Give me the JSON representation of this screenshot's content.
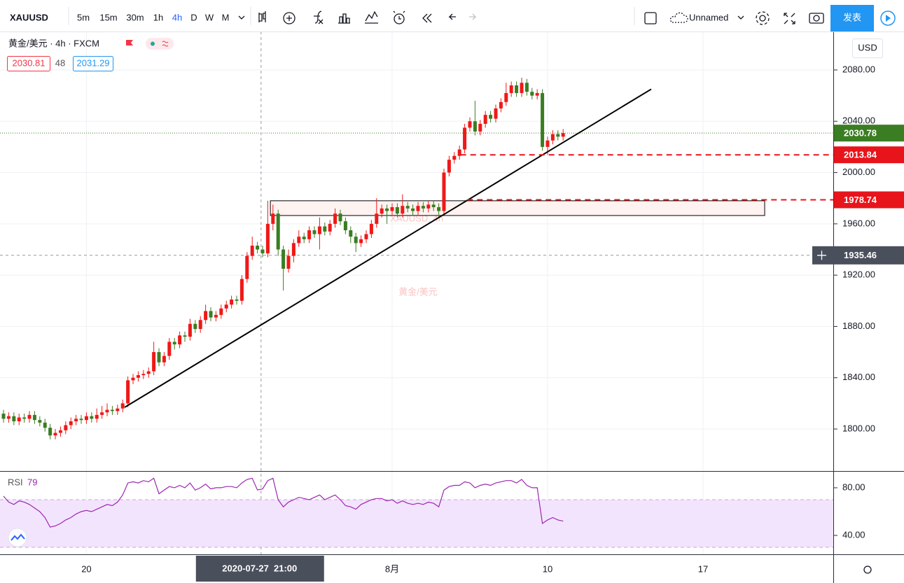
{
  "toolbar": {
    "symbol": "XAUUSD",
    "intervals": [
      "5m",
      "15m",
      "30m",
      "1h",
      "4h",
      "D",
      "W",
      "M"
    ],
    "active_interval": 4,
    "layout_name": "Unnamed",
    "publish": "发表"
  },
  "legend": {
    "title": "黄金/美元 · 4h · FXCM",
    "bid": 2030.81,
    "spread": 48,
    "ask": 2031.29,
    "currency": "USD"
  },
  "chart_data": {
    "type": "candlestick",
    "watermark": "XAUUSD, 4h",
    "watermark_sub": "黄金/美元",
    "up_color": "#f01818",
    "down_color": "#3b7d23",
    "xlim": [
      -0.68,
      160.14
    ],
    "ylim": [
      1767.8,
      2110.0
    ],
    "xticks": [
      {
        "value": 16,
        "label": "20"
      },
      {
        "value": 75,
        "label": "8月"
      },
      {
        "value": 105,
        "label": "10"
      },
      {
        "value": 135,
        "label": "17"
      }
    ],
    "yticks": [
      {
        "value": 1800,
        "label": "1800.00"
      },
      {
        "value": 1840,
        "label": "1840.00"
      },
      {
        "value": 1880,
        "label": "1880.00"
      },
      {
        "value": 1920,
        "label": "1920.00"
      },
      {
        "value": 1960,
        "label": "1960.00"
      },
      {
        "value": 2000,
        "label": "2000.00"
      },
      {
        "value": 2040,
        "label": "2040.00"
      },
      {
        "value": 2080,
        "label": "2080.00"
      }
    ],
    "grid": true,
    "open": [
      1812,
      1808,
      1810,
      1806,
      1809,
      1808,
      1811,
      1807,
      1805,
      1801,
      1795,
      1797,
      1799,
      1803,
      1806,
      1808,
      1807,
      1810,
      1808,
      1811,
      1813,
      1815,
      1814,
      1816,
      1820,
      1838,
      1840,
      1842,
      1843,
      1845,
      1860,
      1852,
      1857,
      1868,
      1866,
      1873,
      1872,
      1882,
      1878,
      1885,
      1892,
      1887,
      1889,
      1894,
      1897,
      1901,
      1900,
      1917,
      1935,
      1943,
      1940,
      1937,
      1960,
      1968,
      1940,
      1925,
      1935,
      1945,
      1950,
      1948,
      1955,
      1952,
      1958,
      1954,
      1960,
      1968,
      1962,
      1955,
      1950,
      1945,
      1948,
      1952,
      1960,
      1968,
      1972,
      1970,
      1973,
      1968,
      1974,
      1972,
      1970,
      1974,
      1972,
      1975,
      1973,
      1970,
      2000,
      2010,
      2013,
      2018,
      2035,
      2040,
      2032,
      2038,
      2045,
      2042,
      2050,
      2055,
      2062,
      2068,
      2062,
      2070,
      2063,
      2060,
      2062,
      2020,
      2025,
      2030,
      2028
    ],
    "high": [
      1815,
      1813,
      1813,
      1812,
      1812,
      1814,
      1814,
      1810,
      1808,
      1804,
      1800,
      1802,
      1806,
      1809,
      1811,
      1811,
      1813,
      1813,
      1816,
      1818,
      1820,
      1818,
      1819,
      1823,
      1841,
      1843,
      1845,
      1846,
      1848,
      1868,
      1863,
      1860,
      1871,
      1871,
      1876,
      1876,
      1886,
      1885,
      1888,
      1897,
      1895,
      1892,
      1897,
      1900,
      1904,
      1904,
      1920,
      1938,
      1950,
      1946,
      1943,
      1978,
      1975,
      1971,
      1943,
      1940,
      1948,
      1955,
      1953,
      1958,
      1958,
      1965,
      1961,
      1963,
      1972,
      1971,
      1965,
      1958,
      1953,
      1951,
      1955,
      1963,
      1980,
      1975,
      1975,
      1976,
      1976,
      1983,
      1977,
      1975,
      1977,
      1977,
      1978,
      1978,
      1976,
      2003,
      2013,
      2016,
      2021,
      2038,
      2043,
      2056,
      2041,
      2048,
      2048,
      2053,
      2058,
      2070,
      2071,
      2071,
      2074,
      2073,
      2066,
      2065,
      2065,
      2028,
      2033,
      2033,
      2034
    ],
    "low": [
      1805,
      1805,
      1803,
      1803,
      1805,
      1805,
      1804,
      1802,
      1798,
      1792,
      1792,
      1794,
      1796,
      1800,
      1803,
      1804,
      1804,
      1805,
      1805,
      1808,
      1810,
      1811,
      1811,
      1813,
      1817,
      1835,
      1837,
      1839,
      1840,
      1842,
      1849,
      1849,
      1854,
      1862,
      1863,
      1868,
      1869,
      1875,
      1875,
      1882,
      1884,
      1884,
      1886,
      1891,
      1894,
      1897,
      1897,
      1914,
      1932,
      1937,
      1934,
      1934,
      1955,
      1935,
      1908,
      1922,
      1930,
      1942,
      1945,
      1945,
      1949,
      1940,
      1951,
      1951,
      1957,
      1959,
      1952,
      1945,
      1938,
      1942,
      1945,
      1949,
      1957,
      1965,
      1960,
      1967,
      1965,
      1965,
      1969,
      1967,
      1967,
      1969,
      1969,
      1970,
      1965,
      1967,
      1997,
      2007,
      2010,
      2015,
      2032,
      2029,
      2029,
      2035,
      2039,
      2039,
      2047,
      2052,
      2059,
      2059,
      2059,
      2060,
      2057,
      2057,
      2017,
      2013.84,
      2022,
      2025,
      2025
    ],
    "close": [
      1808,
      1810,
      1806,
      1809,
      1808,
      1811,
      1807,
      1805,
      1801,
      1795,
      1797,
      1799,
      1803,
      1806,
      1808,
      1807,
      1810,
      1808,
      1811,
      1813,
      1815,
      1814,
      1816,
      1820,
      1838,
      1840,
      1842,
      1843,
      1845,
      1860,
      1852,
      1857,
      1868,
      1866,
      1873,
      1872,
      1882,
      1878,
      1885,
      1892,
      1887,
      1889,
      1894,
      1897,
      1901,
      1900,
      1917,
      1935,
      1943,
      1940,
      1937,
      1960,
      1968,
      1940,
      1925,
      1935,
      1945,
      1950,
      1948,
      1955,
      1952,
      1958,
      1954,
      1960,
      1968,
      1962,
      1955,
      1950,
      1945,
      1948,
      1952,
      1960,
      1968,
      1972,
      1970,
      1973,
      1968,
      1974,
      1972,
      1970,
      1974,
      1972,
      1975,
      1973,
      1970,
      2000,
      2010,
      2013,
      2018,
      2035,
      2040,
      2032,
      2038,
      2045,
      2042,
      2050,
      2055,
      2062,
      2068,
      2062,
      2070,
      2063,
      2060,
      2062,
      2020,
      2025,
      2030,
      2028,
      2030.78
    ],
    "last_color": "#3b7d23",
    "trendline": {
      "x": [
        23.4,
        125
      ],
      "y": [
        1817,
        2065
      ],
      "color": "#000000"
    },
    "box": {
      "x": [
        51.5,
        146.9
      ],
      "y": [
        1966.5,
        1978
      ],
      "color": "#fdeeea"
    },
    "levels": [
      {
        "value": 2013.84,
        "start": 88.2,
        "color": "#e8141b"
      },
      {
        "value": 1978.74,
        "start": 89.5,
        "color": "#e8141b"
      }
    ],
    "crosshair": {
      "x": 49.7,
      "y": 1935.46,
      "time_label": "2020-07-27  21:00",
      "color": "#4a4f5c"
    },
    "rsi": {
      "title": "RSI",
      "color": "#9c27b0",
      "band": [
        30,
        70
      ],
      "band_color": "#f3e4fd",
      "ylim": [
        25.3,
        92.9
      ],
      "yticks": [
        {
          "value": 80,
          "label": "80.00"
        },
        {
          "value": 40,
          "label": "40.00"
        }
      ],
      "values": [
        73,
        68,
        66,
        69,
        68,
        66,
        63,
        60,
        55,
        47,
        48,
        50,
        53,
        55,
        58,
        60,
        61,
        60,
        62,
        64,
        66,
        65,
        68,
        74,
        84,
        85,
        84,
        86,
        85,
        88,
        75,
        78,
        81,
        80,
        82,
        80,
        84,
        78,
        80,
        83,
        79,
        80,
        80,
        81,
        81,
        80,
        84,
        87,
        88,
        78.15,
        79,
        86,
        88,
        70,
        64,
        68,
        70,
        72,
        71,
        70,
        72,
        74,
        70,
        72,
        74,
        70,
        65,
        64,
        62,
        66,
        68,
        70,
        71,
        71,
        69,
        70,
        67,
        69,
        67,
        66,
        67,
        66,
        68,
        67,
        64,
        78,
        81,
        82,
        82,
        85,
        84,
        80,
        82,
        83,
        82,
        84,
        85,
        86,
        86,
        84,
        87,
        82,
        80,
        80,
        50,
        53,
        55,
        53,
        52
      ]
    }
  }
}
